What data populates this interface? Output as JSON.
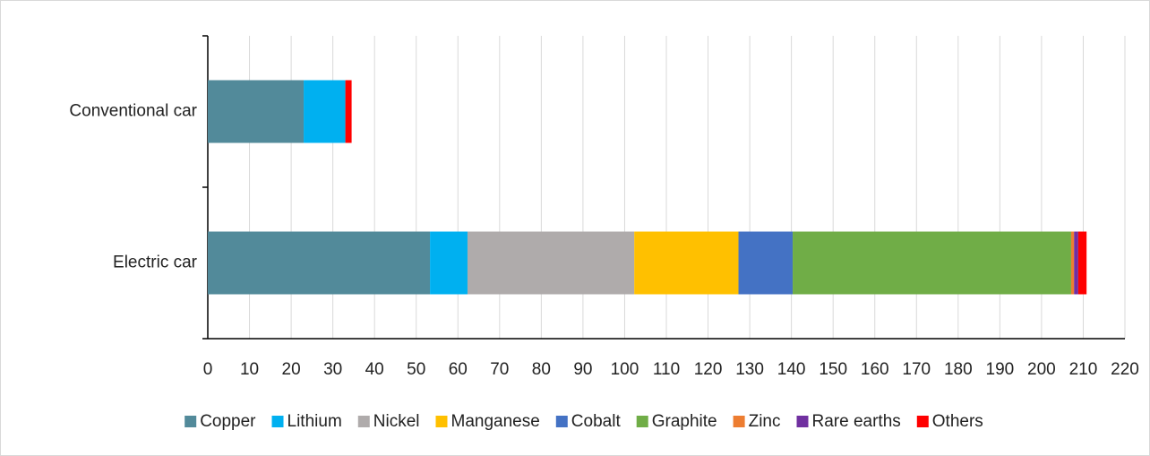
{
  "chart_data": {
    "type": "stacked-bar-horizontal",
    "categories": [
      "Conventional car",
      "Electric car"
    ],
    "series": [
      {
        "name": "Copper",
        "color": "#528a9a",
        "values": [
          23,
          53.3
        ]
      },
      {
        "name": "Lithium",
        "color": "#00b0f0",
        "values": [
          10,
          9
        ]
      },
      {
        "name": "Nickel",
        "color": "#afabab",
        "values": [
          0,
          40
        ]
      },
      {
        "name": "Manganese",
        "color": "#ffc000",
        "values": [
          0,
          25
        ]
      },
      {
        "name": "Cobalt",
        "color": "#4472c4",
        "values": [
          0,
          13
        ]
      },
      {
        "name": "Graphite",
        "color": "#70ad47",
        "values": [
          0,
          66.8
        ]
      },
      {
        "name": "Zinc",
        "color": "#ed7d31",
        "values": [
          0,
          0.7
        ]
      },
      {
        "name": "Rare earths",
        "color": "#7030a0",
        "values": [
          0,
          1
        ]
      },
      {
        "name": "Others",
        "color": "#ff0000",
        "values": [
          1.5,
          2
        ]
      }
    ],
    "xlim": [
      0,
      220
    ],
    "xticks": [
      0,
      10,
      20,
      30,
      40,
      50,
      60,
      70,
      80,
      90,
      100,
      110,
      120,
      130,
      140,
      150,
      160,
      170,
      180,
      190,
      200,
      210,
      220
    ],
    "grid": true,
    "legend": "bottom"
  }
}
